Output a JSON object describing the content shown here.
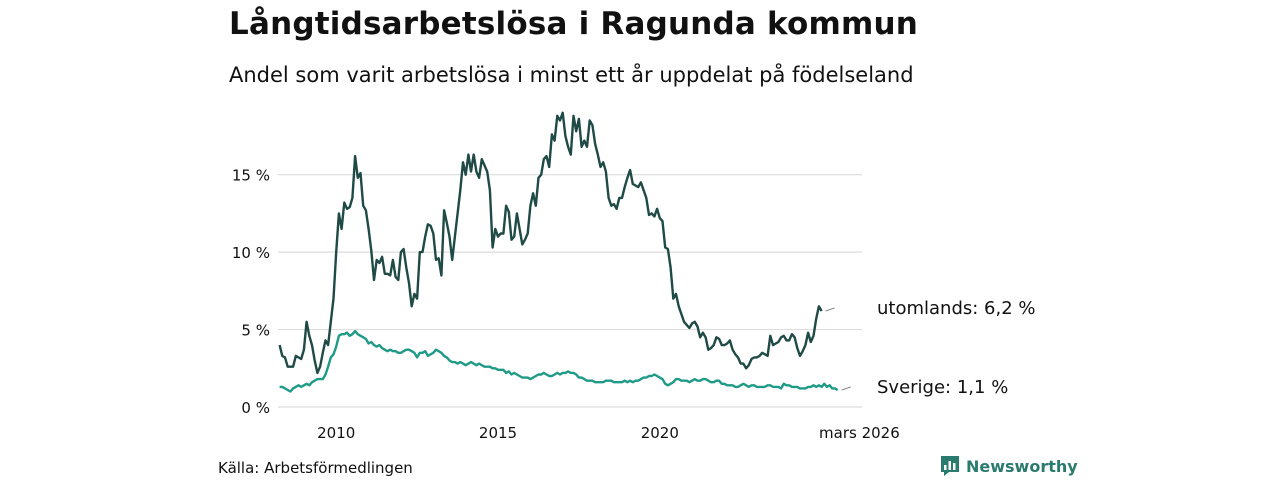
{
  "title": "Långtidsarbetslösa i Ragunda kommun",
  "subtitle": "Andel som varit arbetslösa i minst ett år uppdelat på födelseland",
  "source": "Källa: Arbetsförmedlingen",
  "brand": "Newsworthy",
  "colors": {
    "utomlands": "#1f4a45",
    "sverige": "#1f9a86",
    "grid": "#dddddd",
    "brand": "#2a7a6e"
  },
  "chart_data": {
    "type": "line",
    "x_start": 2008.25,
    "x_step": 0.0833333,
    "xlim": [
      2008.2,
      2026.25
    ],
    "ylim": [
      0,
      19.5
    ],
    "y_ticks": [
      {
        "value": 0,
        "label": "0 %"
      },
      {
        "value": 5,
        "label": "5 %"
      },
      {
        "value": 10,
        "label": "10 %"
      },
      {
        "value": 15,
        "label": "15 %"
      }
    ],
    "x_ticks": [
      {
        "value": 2010,
        "label": "2010"
      },
      {
        "value": 2015,
        "label": "2015"
      },
      {
        "value": 2020,
        "label": "2020"
      },
      {
        "value": 2026.17,
        "label": "mars 2026"
      }
    ],
    "series": [
      {
        "name": "utomlands",
        "end_label": "utomlands: 6,2 %",
        "values": [
          4.0,
          3.3,
          3.2,
          2.6,
          2.6,
          2.6,
          3.3,
          3.2,
          3.1,
          3.7,
          5.5,
          4.6,
          4.0,
          3.0,
          2.2,
          2.6,
          3.5,
          4.3,
          4.0,
          5.5,
          7.0,
          10.0,
          12.5,
          11.5,
          13.2,
          12.8,
          12.9,
          13.5,
          16.2,
          14.8,
          15.1,
          13.0,
          12.7,
          11.5,
          10.1,
          8.2,
          9.5,
          9.3,
          9.7,
          8.6,
          8.6,
          8.5,
          9.5,
          8.4,
          8.2,
          10.0,
          10.2,
          9.0,
          8.0,
          6.5,
          7.3,
          7.0,
          10.0,
          10.0,
          11.0,
          11.8,
          11.7,
          11.2,
          9.5,
          9.6,
          8.5,
          12.7,
          11.9,
          11.0,
          9.5,
          11.0,
          12.5,
          14.0,
          15.8,
          15.0,
          16.3,
          15.2,
          16.3,
          15.2,
          14.8,
          16.0,
          15.6,
          15.2,
          14.0,
          10.3,
          11.5,
          11.0,
          11.2,
          11.2,
          13.0,
          12.6,
          10.8,
          11.0,
          12.5,
          11.5,
          10.5,
          10.8,
          11.2,
          13.0,
          13.8,
          13.0,
          14.8,
          15.0,
          16.0,
          16.2,
          15.5,
          17.6,
          17.2,
          18.8,
          18.5,
          19.0,
          17.5,
          16.8,
          16.3,
          18.8,
          17.8,
          18.6,
          16.8,
          17.2,
          16.8,
          18.5,
          18.2,
          17.0,
          16.3,
          15.5,
          15.8,
          15.2,
          13.5,
          13.0,
          13.1,
          12.8,
          13.5,
          13.5,
          14.2,
          14.8,
          15.3,
          14.4,
          14.3,
          14.2,
          14.5,
          14.0,
          13.5,
          12.4,
          12.5,
          12.3,
          12.8,
          12.2,
          12.0,
          10.3,
          10.2,
          9.0,
          7.0,
          7.3,
          6.5,
          6.0,
          5.5,
          5.3,
          5.1,
          5.4,
          5.5,
          5.2,
          4.5,
          4.8,
          4.5,
          3.7,
          3.8,
          4.0,
          4.5,
          4.4,
          4.0,
          4.0,
          4.1,
          4.3,
          3.7,
          3.4,
          3.2,
          2.8,
          2.8,
          2.5,
          2.7,
          3.1,
          3.2,
          3.2,
          3.3,
          3.5,
          3.4,
          3.3,
          4.6,
          4.0,
          4.1,
          4.2,
          4.5,
          4.6,
          4.3,
          4.3,
          4.7,
          4.5,
          3.8,
          3.3,
          3.6,
          4.0,
          4.8,
          4.2,
          4.6,
          5.7,
          6.5,
          6.2
        ]
      },
      {
        "name": "Sverige",
        "end_label": "Sverige: 1,1 %",
        "values": [
          1.3,
          1.3,
          1.2,
          1.1,
          1.0,
          1.2,
          1.3,
          1.4,
          1.3,
          1.4,
          1.5,
          1.4,
          1.6,
          1.7,
          1.8,
          1.8,
          1.8,
          2.1,
          2.6,
          3.2,
          3.4,
          3.9,
          4.6,
          4.7,
          4.7,
          4.8,
          4.6,
          4.7,
          4.9,
          4.7,
          4.6,
          4.5,
          4.4,
          4.1,
          4.2,
          4.0,
          3.9,
          4.0,
          3.8,
          3.7,
          3.6,
          3.7,
          3.6,
          3.6,
          3.5,
          3.5,
          3.6,
          3.7,
          3.7,
          3.6,
          3.5,
          3.2,
          3.5,
          3.5,
          3.6,
          3.3,
          3.4,
          3.5,
          3.7,
          3.6,
          3.5,
          3.3,
          3.2,
          3.0,
          2.9,
          2.9,
          2.8,
          2.9,
          2.8,
          2.7,
          2.8,
          2.9,
          2.8,
          2.7,
          2.8,
          2.7,
          2.6,
          2.6,
          2.6,
          2.5,
          2.5,
          2.4,
          2.4,
          2.4,
          2.2,
          2.3,
          2.1,
          2.2,
          2.1,
          2.0,
          1.9,
          1.9,
          1.9,
          1.8,
          1.9,
          2.0,
          2.1,
          2.1,
          2.2,
          2.1,
          2.0,
          2.0,
          2.1,
          2.2,
          2.1,
          2.2,
          2.2,
          2.3,
          2.2,
          2.2,
          2.1,
          1.9,
          1.9,
          1.8,
          1.7,
          1.7,
          1.7,
          1.6,
          1.6,
          1.6,
          1.6,
          1.7,
          1.7,
          1.7,
          1.6,
          1.6,
          1.6,
          1.6,
          1.7,
          1.6,
          1.7,
          1.6,
          1.7,
          1.7,
          1.8,
          1.9,
          1.9,
          2.0,
          2.0,
          2.1,
          2.0,
          1.9,
          1.8,
          1.5,
          1.4,
          1.5,
          1.6,
          1.8,
          1.8,
          1.7,
          1.7,
          1.7,
          1.6,
          1.7,
          1.8,
          1.7,
          1.7,
          1.8,
          1.8,
          1.7,
          1.6,
          1.6,
          1.7,
          1.7,
          1.5,
          1.5,
          1.4,
          1.4,
          1.4,
          1.3,
          1.3,
          1.4,
          1.5,
          1.4,
          1.3,
          1.4,
          1.4,
          1.3,
          1.3,
          1.3,
          1.3,
          1.4,
          1.4,
          1.3,
          1.3,
          1.3,
          1.2,
          1.5,
          1.4,
          1.4,
          1.3,
          1.3,
          1.3,
          1.2,
          1.2,
          1.2,
          1.3,
          1.3,
          1.4,
          1.3,
          1.4,
          1.3,
          1.5,
          1.3,
          1.4,
          1.2,
          1.2,
          1.1
        ]
      }
    ]
  }
}
